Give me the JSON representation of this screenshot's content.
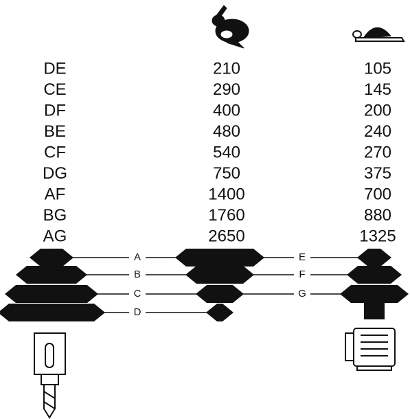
{
  "table": {
    "rows": [
      [
        "DE",
        "210",
        "105"
      ],
      [
        "CE",
        "290",
        "145"
      ],
      [
        "DF",
        "400",
        "200"
      ],
      [
        "BE",
        "480",
        "240"
      ],
      [
        "CF",
        "540",
        "270"
      ],
      [
        "DG",
        "750",
        "375"
      ],
      [
        "AF",
        "1400",
        "700"
      ],
      [
        "BG",
        "1760",
        "880"
      ],
      [
        "AG",
        "2650",
        "1325"
      ]
    ]
  },
  "pulleys": {
    "labels": [
      "A",
      "B",
      "C",
      "D",
      "E",
      "F",
      "G"
    ]
  }
}
